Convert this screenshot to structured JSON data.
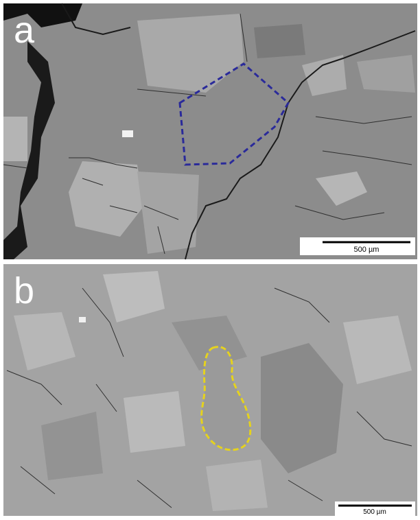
{
  "panels": [
    {
      "label": "a",
      "scale_bar": "500 µm"
    },
    {
      "label": "b",
      "scale_bar": "500 µm"
    }
  ]
}
